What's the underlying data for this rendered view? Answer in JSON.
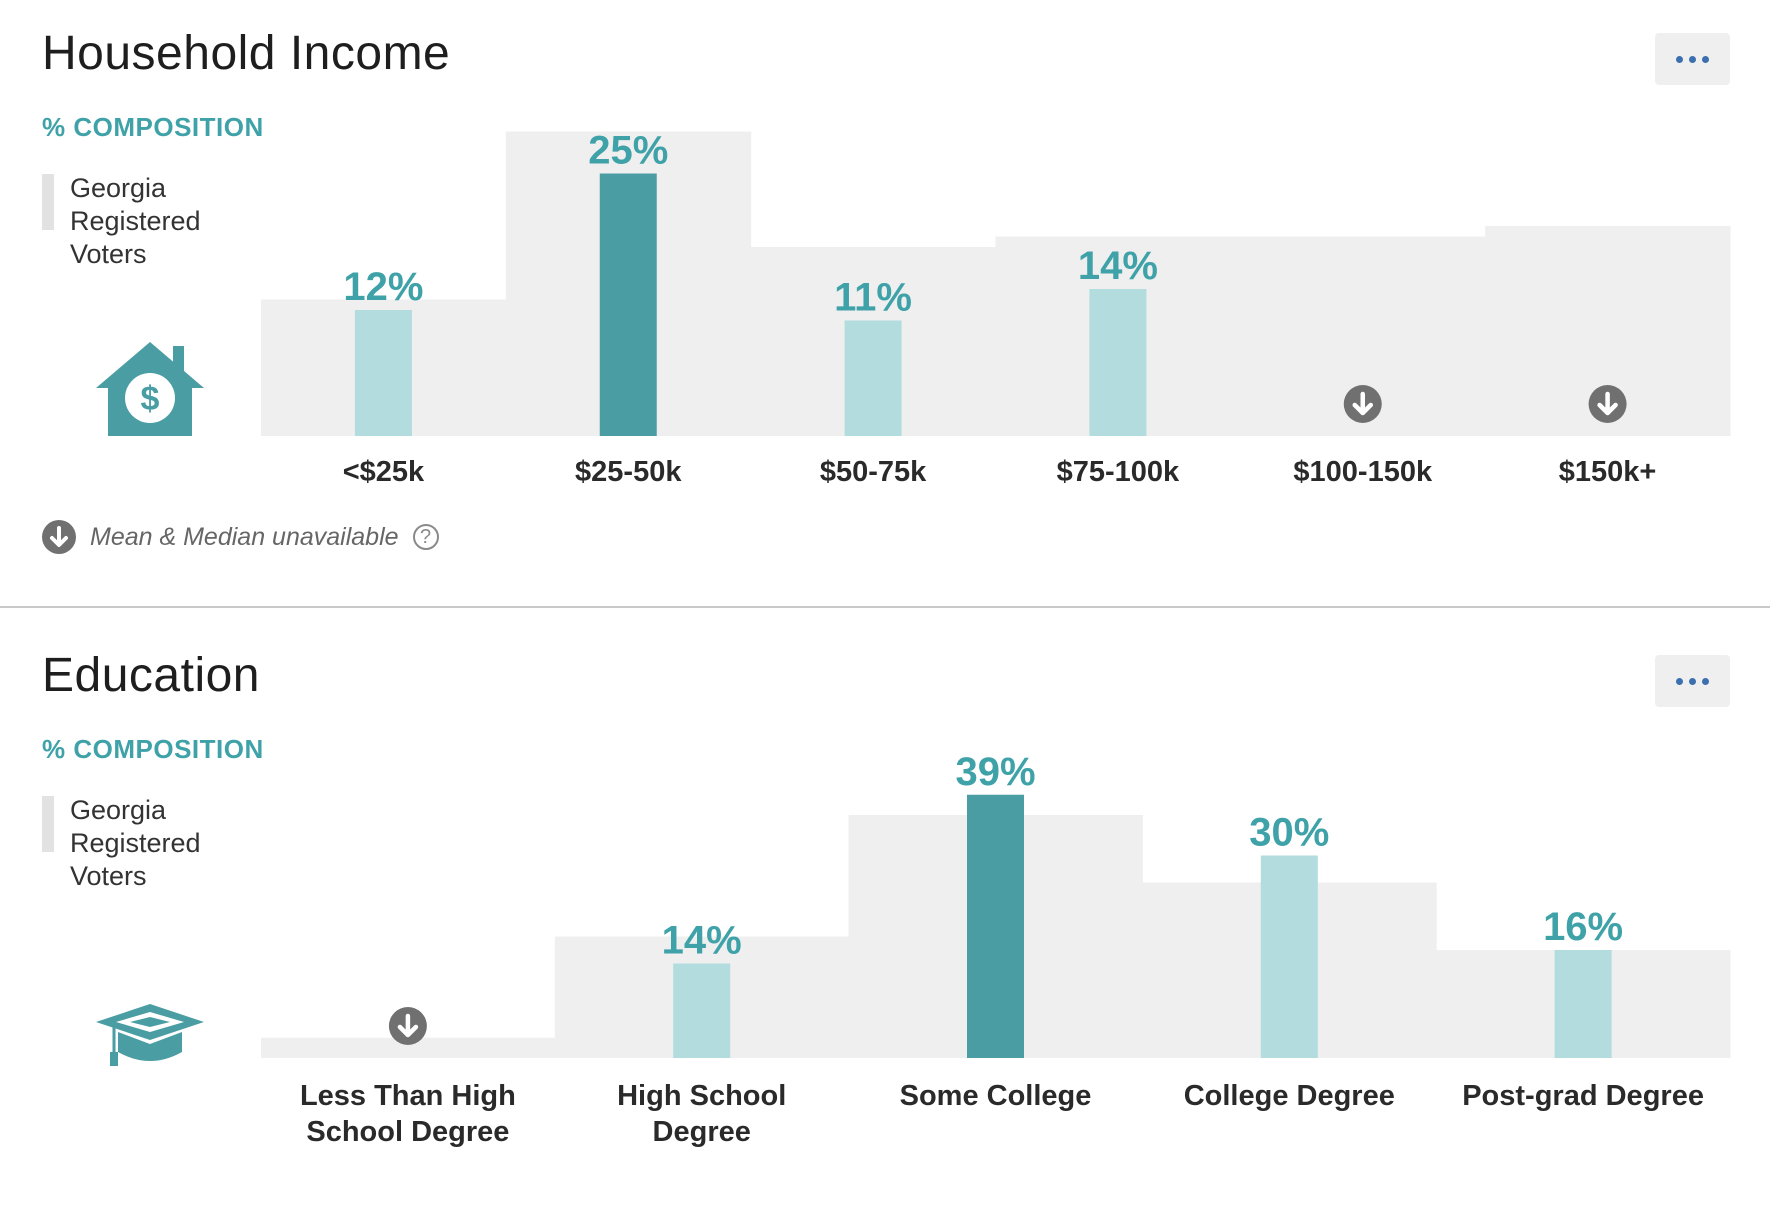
{
  "colors": {
    "accent": "#3fa2a8",
    "highlight_bar": "#4a9ea3",
    "light_bar": "#b2dcdd",
    "baseline_bg": "#efefef",
    "unavailable_icon": "#707070",
    "menu_dots": "#3c6fb0"
  },
  "sections": [
    {
      "title": "Household Income",
      "menu_icon": "more-horizontal-icon",
      "composition_label": "% COMPOSITION",
      "legend_label": "Georgia Registered Voters",
      "icon": "house-dollar-icon",
      "footnote": "Mean & Median unavailable",
      "footnote_icon": "arrow-down-circle-icon",
      "help_icon": "question-circle-icon"
    },
    {
      "title": "Education",
      "menu_icon": "more-horizontal-icon",
      "composition_label": "% COMPOSITION",
      "legend_label": "Georgia Registered Voters",
      "icon": "graduation-cap-icon"
    }
  ],
  "chart_data": [
    {
      "type": "bar",
      "title": "Household Income",
      "ylabel": "% COMPOSITION",
      "categories": [
        "<$25k",
        "$25-50k",
        "$50-75k",
        "$75-100k",
        "$100-150k",
        "$150k+"
      ],
      "baseline": {
        "name": "Georgia Registered Voters",
        "values": [
          13,
          29,
          18,
          19,
          19,
          20
        ]
      },
      "series": [
        {
          "values": [
            12,
            25,
            11,
            14,
            null,
            null
          ]
        }
      ],
      "value_labels": [
        "12%",
        "25%",
        "11%",
        "14%",
        "",
        ""
      ],
      "highlight_index": 1,
      "unavailable_indices": [
        4,
        5
      ],
      "ylim": [
        0,
        30
      ]
    },
    {
      "type": "bar",
      "title": "Education",
      "ylabel": "% COMPOSITION",
      "categories": [
        "Less Than High School Degree",
        "High School Degree",
        "Some College",
        "College Degree",
        "Post-grad Degree"
      ],
      "category_lines": [
        [
          "Less Than High",
          "School Degree"
        ],
        [
          "High School",
          "Degree"
        ],
        [
          "Some College"
        ],
        [
          "College Degree"
        ],
        [
          "Post-grad Degree"
        ]
      ],
      "baseline": {
        "name": "Georgia Registered Voters",
        "values": [
          3,
          18,
          36,
          26,
          16
        ]
      },
      "series": [
        {
          "values": [
            null,
            14,
            39,
            30,
            16
          ]
        }
      ],
      "value_labels": [
        "",
        "14%",
        "39%",
        "30%",
        "16%"
      ],
      "highlight_index": 2,
      "unavailable_indices": [
        0
      ],
      "ylim": [
        0,
        40
      ]
    }
  ]
}
